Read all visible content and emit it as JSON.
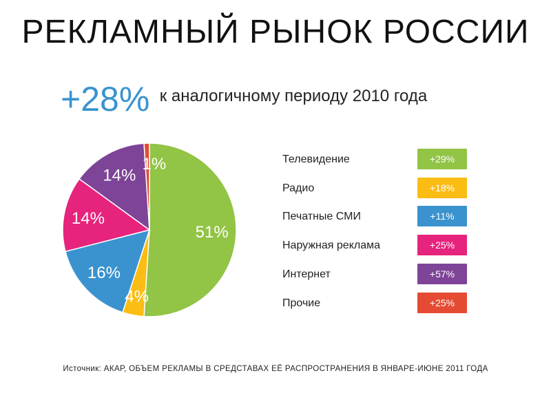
{
  "title": "РЕКЛАМНЫЙ РЫНОК РОССИИ",
  "growth": {
    "value": "+28%",
    "text": "к аналогичному периоду 2010 года"
  },
  "chart_data": {
    "type": "pie",
    "slices": [
      {
        "label": "Телевидение",
        "value": 51,
        "percent_label": "51%",
        "color": "#92c445"
      },
      {
        "label": "Радио",
        "value": 4,
        "percent_label": "4%",
        "color": "#fbbd13"
      },
      {
        "label": "Печатные СМИ",
        "value": 16,
        "percent_label": "16%",
        "color": "#3a93cf"
      },
      {
        "label": "Наружная реклама",
        "value": 14,
        "percent_label": "14%",
        "color": "#e6237d"
      },
      {
        "label": "Интернет",
        "value": 14,
        "percent_label": "14%",
        "color": "#7d4497"
      },
      {
        "label": "Прочие",
        "value": 1,
        "percent_label": "1%",
        "color": "#e44b32"
      }
    ],
    "legend": {
      "position": "right",
      "items": [
        {
          "label": "Телевидение",
          "change": "+29%",
          "color": "#92c445"
        },
        {
          "label": "Радио",
          "change": "+18%",
          "color": "#fbbd13"
        },
        {
          "label": "Печатные СМИ",
          "change": "+11%",
          "color": "#3a93cf"
        },
        {
          "label": "Наружная реклама",
          "change": "+25%",
          "color": "#e6237d"
        },
        {
          "label": "Интернет",
          "change": "+57%",
          "color": "#7d4497"
        },
        {
          "label": "Прочие",
          "change": "+25%",
          "color": "#e44b32"
        }
      ]
    }
  },
  "source": "Источник: АКАР, ОБЪЕМ РЕКЛАМЫ В СРЕДСТАВАХ ЕЁ РАСПРОСТРАНЕНИЯ В ЯНВАРЕ-ИЮНЕ 2011 ГОДА"
}
